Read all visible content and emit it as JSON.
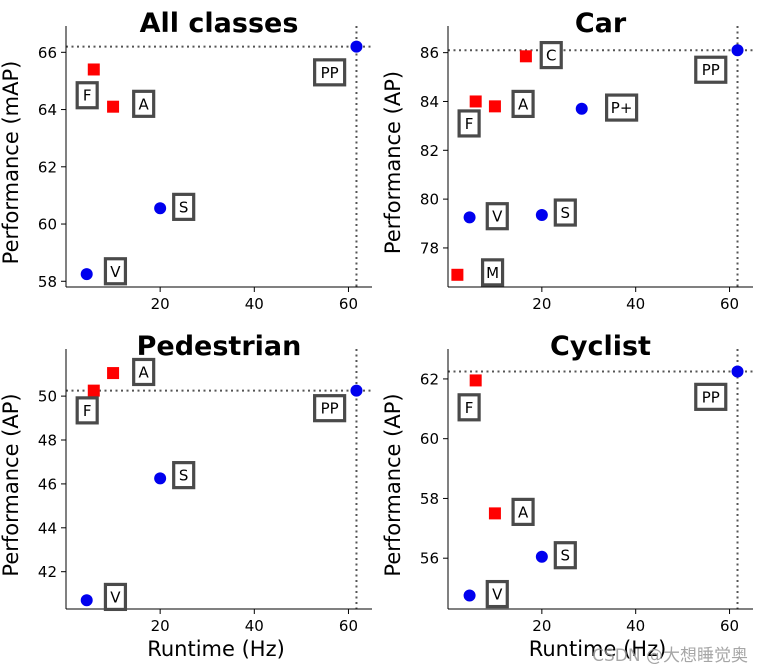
{
  "watermark": "CSDN @大想睡觉奥",
  "colors": {
    "two_stage": "#ff0000",
    "one_stage": "#0000ee",
    "box_edge": "#4a4a4a",
    "ref_line": "#555555"
  },
  "chart_data": [
    {
      "type": "scatter",
      "title": "All classes",
      "xlabel": "",
      "ylabel": "Performance (mAP)",
      "xlim": [
        0,
        65
      ],
      "ylim": [
        57.8,
        66.5
      ],
      "xticks": [
        20,
        40,
        60
      ],
      "yticks": [
        58,
        60,
        62,
        64,
        66
      ],
      "ref_x": 61.7,
      "ref_y": 66.2,
      "points": [
        {
          "label": "PP",
          "x": 61.7,
          "y": 66.2,
          "marker": "circle",
          "color": "#0000ee",
          "lx": 56,
          "ly": 65.3
        },
        {
          "label": "F",
          "x": 5.9,
          "y": 65.4,
          "marker": "square",
          "color": "#ff0000",
          "lx": 4.5,
          "ly": 64.5
        },
        {
          "label": "A",
          "x": 10.0,
          "y": 64.1,
          "marker": "square",
          "color": "#ff0000",
          "lx": 16.5,
          "ly": 64.2
        },
        {
          "label": "S",
          "x": 20.0,
          "y": 60.55,
          "marker": "circle",
          "color": "#0000ee",
          "lx": 25.0,
          "ly": 60.6
        },
        {
          "label": "V",
          "x": 4.4,
          "y": 58.25,
          "marker": "circle",
          "color": "#0000ee",
          "lx": 10.5,
          "ly": 58.35
        }
      ]
    },
    {
      "type": "scatter",
      "title": "Car",
      "xlabel": "",
      "ylabel": "Performance (AP)",
      "xlim": [
        0,
        65
      ],
      "ylim": [
        76.4,
        86.6
      ],
      "xticks": [
        20,
        40,
        60
      ],
      "yticks": [
        78,
        80,
        82,
        84,
        86
      ],
      "ref_x": 61.7,
      "ref_y": 86.1,
      "points": [
        {
          "label": "PP",
          "x": 61.7,
          "y": 86.1,
          "marker": "circle",
          "color": "#0000ee",
          "lx": 56,
          "ly": 85.3
        },
        {
          "label": "C",
          "x": 16.6,
          "y": 85.85,
          "marker": "square",
          "color": "#ff0000",
          "lx": 22.0,
          "ly": 85.9
        },
        {
          "label": "A",
          "x": 10.0,
          "y": 83.8,
          "marker": "square",
          "color": "#ff0000",
          "lx": 16.0,
          "ly": 83.9
        },
        {
          "label": "F",
          "x": 5.9,
          "y": 84.0,
          "marker": "square",
          "color": "#ff0000",
          "lx": 4.5,
          "ly": 83.1
        },
        {
          "label": "P+",
          "x": 28.5,
          "y": 83.7,
          "marker": "circle",
          "color": "#0000ee",
          "lx": 37.0,
          "ly": 83.75
        },
        {
          "label": "V",
          "x": 4.6,
          "y": 79.25,
          "marker": "circle",
          "color": "#0000ee",
          "lx": 10.5,
          "ly": 79.3
        },
        {
          "label": "S",
          "x": 20.0,
          "y": 79.35,
          "marker": "circle",
          "color": "#0000ee",
          "lx": 25.0,
          "ly": 79.45
        },
        {
          "label": "M",
          "x": 2.0,
          "y": 76.9,
          "marker": "square",
          "color": "#ff0000",
          "lx": 9.5,
          "ly": 77.0
        }
      ]
    },
    {
      "type": "scatter",
      "title": "Pedestrian",
      "xlabel": "Runtime (Hz)",
      "ylabel": "Performance (AP)",
      "xlim": [
        0,
        65
      ],
      "ylim": [
        40.3,
        51.6
      ],
      "xticks": [
        20,
        40,
        60
      ],
      "yticks": [
        42,
        44,
        46,
        48,
        50
      ],
      "ref_x": 61.7,
      "ref_y": 50.25,
      "points": [
        {
          "label": "PP",
          "x": 61.7,
          "y": 50.25,
          "marker": "circle",
          "color": "#0000ee",
          "lx": 56,
          "ly": 49.45
        },
        {
          "label": "A",
          "x": 10.0,
          "y": 51.05,
          "marker": "square",
          "color": "#ff0000",
          "lx": 16.5,
          "ly": 51.1
        },
        {
          "label": "F",
          "x": 5.9,
          "y": 50.25,
          "marker": "square",
          "color": "#ff0000",
          "lx": 4.5,
          "ly": 49.35
        },
        {
          "label": "S",
          "x": 20.0,
          "y": 46.25,
          "marker": "circle",
          "color": "#0000ee",
          "lx": 25.0,
          "ly": 46.4
        },
        {
          "label": "V",
          "x": 4.4,
          "y": 40.7,
          "marker": "circle",
          "color": "#0000ee",
          "lx": 10.5,
          "ly": 40.85
        }
      ]
    },
    {
      "type": "scatter",
      "title": "Cyclist",
      "xlabel": "Runtime (Hz)",
      "ylabel": "Performance (AP)",
      "xlim": [
        0,
        65
      ],
      "ylim": [
        54.3,
        62.6
      ],
      "xticks": [
        20,
        40,
        60
      ],
      "yticks": [
        56,
        58,
        60,
        62
      ],
      "ref_x": 61.7,
      "ref_y": 62.25,
      "points": [
        {
          "label": "PP",
          "x": 61.7,
          "y": 62.25,
          "marker": "circle",
          "color": "#0000ee",
          "lx": 56,
          "ly": 61.4
        },
        {
          "label": "F",
          "x": 5.9,
          "y": 61.95,
          "marker": "square",
          "color": "#ff0000",
          "lx": 4.5,
          "ly": 61.05
        },
        {
          "label": "A",
          "x": 10.0,
          "y": 57.5,
          "marker": "square",
          "color": "#ff0000",
          "lx": 16.0,
          "ly": 57.55
        },
        {
          "label": "S",
          "x": 20.0,
          "y": 56.05,
          "marker": "circle",
          "color": "#0000ee",
          "lx": 25.0,
          "ly": 56.1
        },
        {
          "label": "V",
          "x": 4.6,
          "y": 54.75,
          "marker": "circle",
          "color": "#0000ee",
          "lx": 10.5,
          "ly": 54.8
        }
      ]
    }
  ]
}
